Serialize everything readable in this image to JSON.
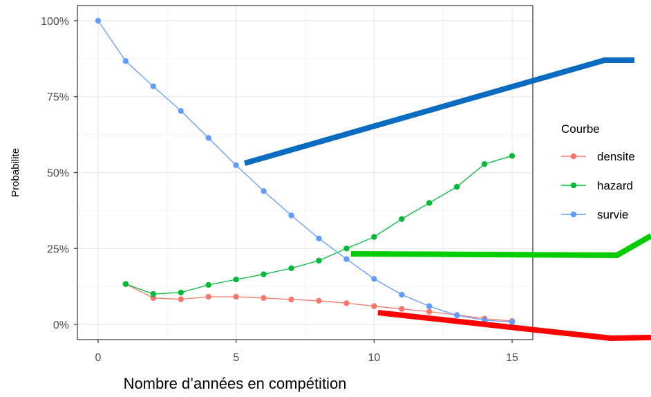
{
  "chart_data": {
    "type": "line",
    "xlabel": "Nombre d’années en compétition",
    "ylabel": "Probabilite",
    "x": [
      0,
      1,
      2,
      3,
      4,
      5,
      6,
      7,
      8,
      9,
      10,
      11,
      12,
      13,
      14,
      15
    ],
    "xlim": [
      -0.75,
      15.75
    ],
    "ylim": [
      -5,
      105
    ],
    "x_ticks": [
      0,
      5,
      10,
      15
    ],
    "x_tick_labels": [
      "0",
      "5",
      "10",
      "15"
    ],
    "y_ticks": [
      0,
      25,
      50,
      75,
      100
    ],
    "y_tick_labels": [
      "0%",
      "25%",
      "50%",
      "75%",
      "100%"
    ],
    "grid": true,
    "legend": {
      "title": "Courbe",
      "position": "right"
    },
    "series": [
      {
        "name": "densite",
        "color": "#F8766D",
        "x": [
          1,
          2,
          3,
          4,
          5,
          6,
          7,
          8,
          9,
          10,
          11,
          12,
          13,
          14,
          15
        ],
        "values": [
          13.3,
          8.7,
          8.3,
          9.1,
          9.1,
          8.7,
          8.2,
          7.8,
          7.0,
          6.0,
          5.1,
          4.2,
          3.1,
          1.9,
          1.1
        ]
      },
      {
        "name": "hazard",
        "color": "#00BA38",
        "x": [
          1,
          2,
          3,
          4,
          5,
          6,
          7,
          8,
          9,
          10,
          11,
          12,
          13,
          14,
          15
        ],
        "values": [
          13.3,
          10.0,
          10.5,
          13.0,
          14.8,
          16.5,
          18.5,
          21.0,
          25.0,
          28.8,
          34.7,
          40.0,
          45.3,
          52.8,
          55.5
        ]
      },
      {
        "name": "survie",
        "color": "#619CFF",
        "x": [
          0,
          1,
          2,
          3,
          4,
          5,
          6,
          7,
          8,
          9,
          10,
          11,
          12,
          13,
          14,
          15
        ],
        "values": [
          100,
          86.7,
          78.4,
          70.3,
          61.4,
          52.4,
          43.9,
          35.9,
          28.3,
          21.5,
          15.0,
          9.8,
          6.0,
          3.0,
          1.4,
          0.8
        ]
      }
    ],
    "annotations": [
      {
        "name": "blue-marker-line",
        "color": "#0A6CC1"
      },
      {
        "name": "green-marker-line",
        "color": "#00CC00"
      },
      {
        "name": "red-marker-line",
        "color": "#FF0000"
      }
    ]
  }
}
